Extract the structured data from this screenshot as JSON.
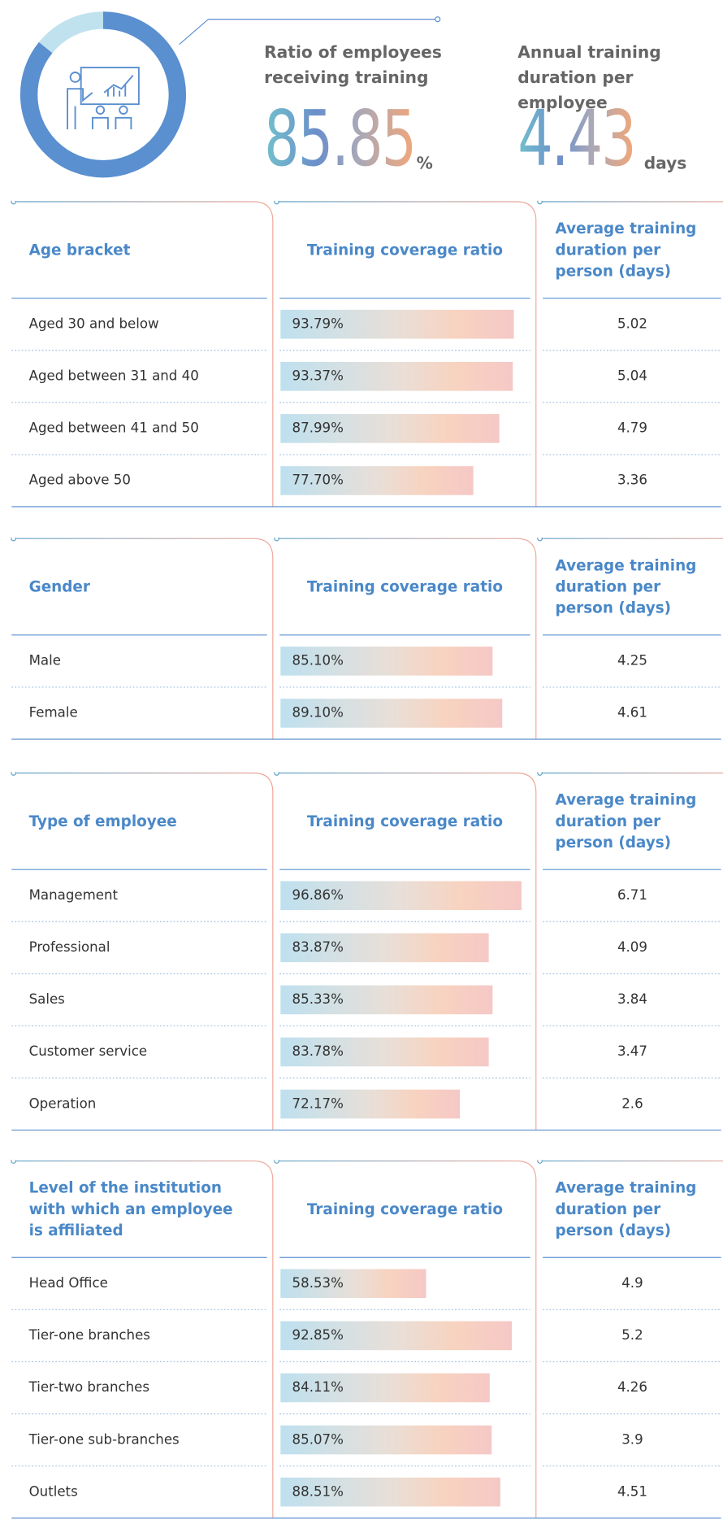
{
  "stats": [
    {
      "title": "Ratio of employees receiving training",
      "value": 85.85,
      "unit": "%"
    },
    {
      "title": "Annual training duration per employee",
      "value": 4.43,
      "unit": "days"
    }
  ],
  "sections": [
    {
      "columns": [
        "Age bracket",
        "Training coverage ratio",
        "Average training duration per person (days)"
      ],
      "rows": [
        {
          "label": "Aged 30 and below",
          "ratio": 93.79,
          "ratio_label": "93.79%",
          "days": 5.02
        },
        {
          "label": "Aged between 31 and 40",
          "ratio": 93.37,
          "ratio_label": "93.37%",
          "days": 5.04
        },
        {
          "label": "Aged between 41 and 50",
          "ratio": 87.99,
          "ratio_label": "87.99%",
          "days": 4.79
        },
        {
          "label": "Aged above 50",
          "ratio": 77.7,
          "ratio_label": "77.70%",
          "days": 3.36
        }
      ]
    },
    {
      "columns": [
        "Gender",
        "Training coverage ratio",
        "Average training duration per person (days)"
      ],
      "rows": [
        {
          "label": "Male",
          "ratio": 85.1,
          "ratio_label": "85.10%",
          "days": 4.25
        },
        {
          "label": "Female",
          "ratio": 89.1,
          "ratio_label": "89.10%",
          "days": 4.61
        }
      ]
    },
    {
      "columns": [
        "Type of employee",
        "Training coverage ratio",
        "Average training duration per person (days)"
      ],
      "rows": [
        {
          "label": "Management",
          "ratio": 96.86,
          "ratio_label": "96.86%",
          "days": 6.71
        },
        {
          "label": "Professional",
          "ratio": 83.87,
          "ratio_label": "83.87%",
          "days": 4.09
        },
        {
          "label": "Sales",
          "ratio": 85.33,
          "ratio_label": "85.33%",
          "days": 3.84
        },
        {
          "label": "Customer service",
          "ratio": 83.78,
          "ratio_label": "83.78%",
          "days": 3.47
        },
        {
          "label": "Operation",
          "ratio": 72.17,
          "ratio_label": "72.17%",
          "days": 2.6
        }
      ]
    },
    {
      "columns": [
        "Level of the institution with which an employee is affiliated",
        "Training coverage ratio",
        "Average training duration per person (days)"
      ],
      "rows": [
        {
          "label": "Head Office",
          "ratio": 58.53,
          "ratio_label": "58.53%",
          "days": 4.9
        },
        {
          "label": "Tier-one branches",
          "ratio": 92.85,
          "ratio_label": "92.85%",
          "days": 5.2
        },
        {
          "label": "Tier-two branches",
          "ratio": 84.11,
          "ratio_label": "84.11%",
          "days": 4.26
        },
        {
          "label": "Tier-one sub-branches",
          "ratio": 85.07,
          "ratio_label": "85.07%",
          "days": 3.9
        },
        {
          "label": "Outlets",
          "ratio": 88.51,
          "ratio_label": "88.51%",
          "days": 4.51
        }
      ]
    }
  ]
}
